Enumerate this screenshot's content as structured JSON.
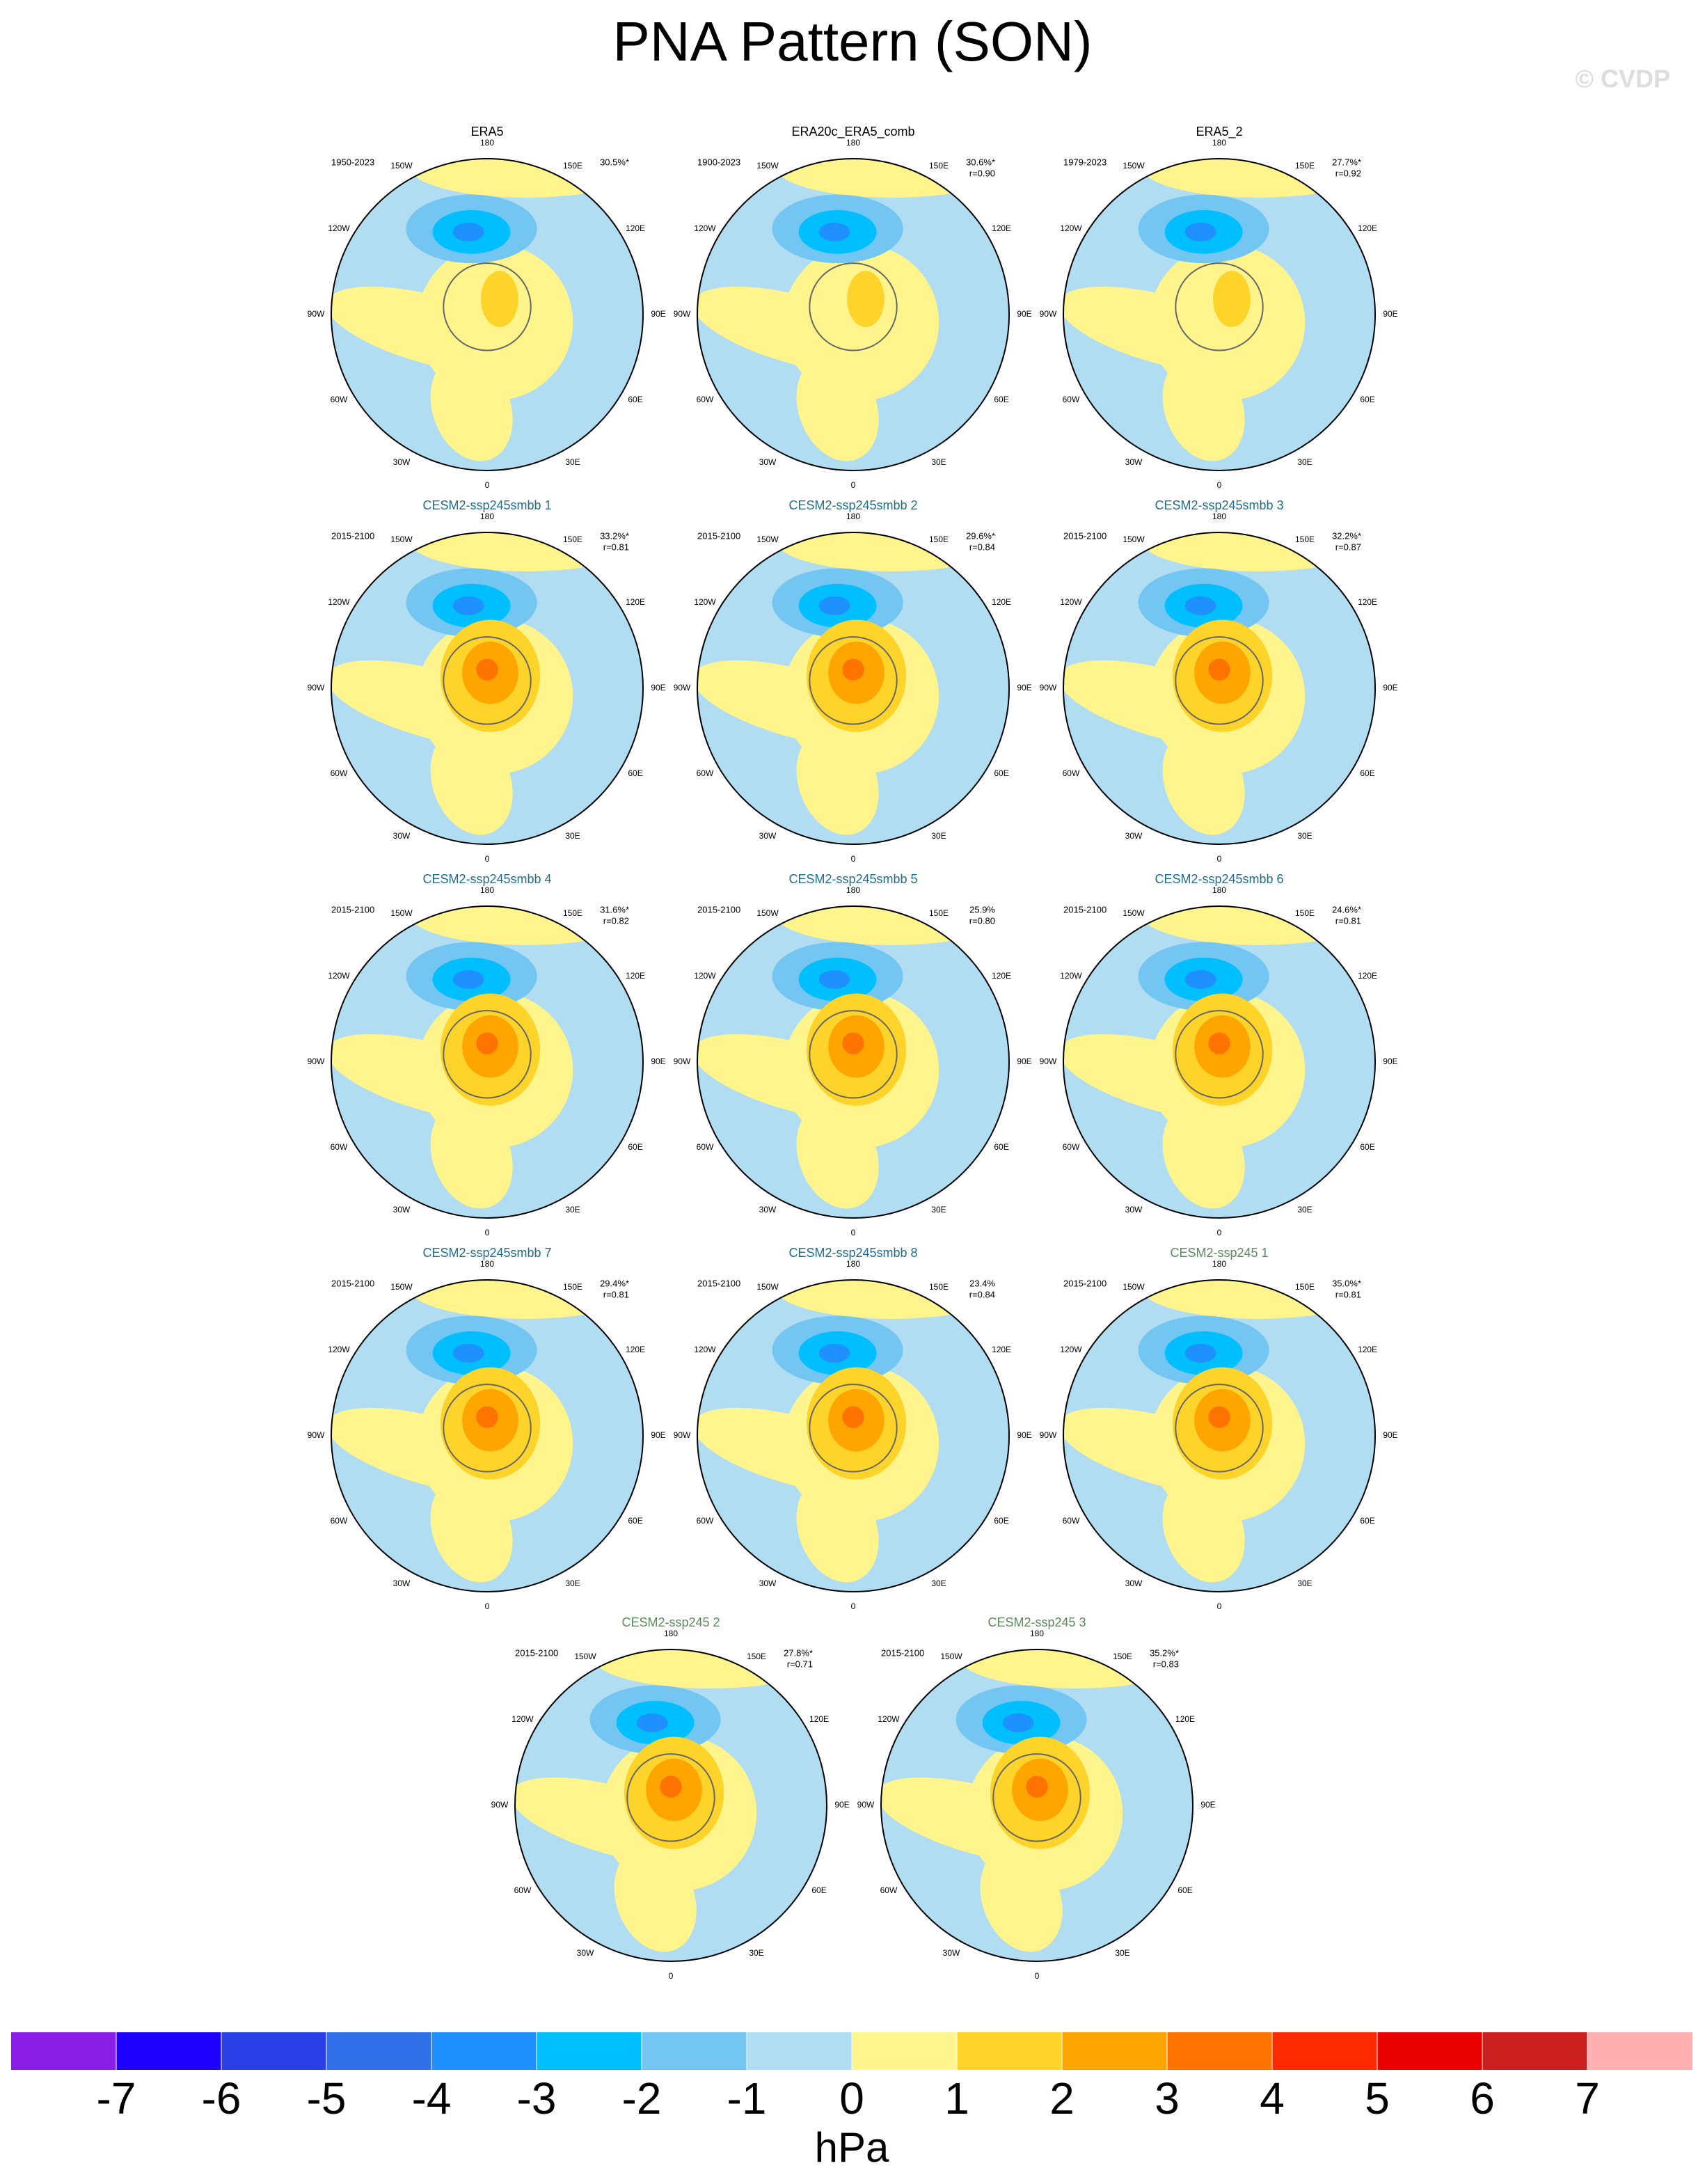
{
  "title": "PNA Pattern (SON)",
  "watermark": "© CVDP",
  "lon_labels": [
    "180",
    "150W",
    "150E",
    "120W",
    "120E",
    "90W",
    "90E",
    "60W",
    "60E",
    "30W",
    "30E",
    "0"
  ],
  "panels": [
    {
      "title": "ERA5",
      "title_color": "#000000",
      "period": "1950-2023",
      "pct": "30.5%*"
    },
    {
      "title": "ERA20c_ERA5_comb",
      "title_color": "#000000",
      "period": "1900-2023",
      "pct": "30.6%*",
      "r": "r=0.90"
    },
    {
      "title": "ERA5_2",
      "title_color": "#000000",
      "period": "1979-2023",
      "pct": "27.7%*",
      "r": "r=0.92"
    },
    {
      "title": "CESM2-ssp245smbb 1",
      "title_color": "#1f6e8c",
      "period": "2015-2100",
      "pct": "33.2%*",
      "r": "r=0.81"
    },
    {
      "title": "CESM2-ssp245smbb 2",
      "title_color": "#1f6e8c",
      "period": "2015-2100",
      "pct": "29.6%*",
      "r": "r=0.84"
    },
    {
      "title": "CESM2-ssp245smbb 3",
      "title_color": "#1f6e8c",
      "period": "2015-2100",
      "pct": "32.2%*",
      "r": "r=0.87"
    },
    {
      "title": "CESM2-ssp245smbb 4",
      "title_color": "#1f6e8c",
      "period": "2015-2100",
      "pct": "31.6%*",
      "r": "r=0.82"
    },
    {
      "title": "CESM2-ssp245smbb 5",
      "title_color": "#1f6e8c",
      "period": "2015-2100",
      "pct": "25.9%",
      "r": "r=0.80"
    },
    {
      "title": "CESM2-ssp245smbb 6",
      "title_color": "#1f6e8c",
      "period": "2015-2100",
      "pct": "24.6%*",
      "r": "r=0.81"
    },
    {
      "title": "CESM2-ssp245smbb 7",
      "title_color": "#1f6e8c",
      "period": "2015-2100",
      "pct": "29.4%*",
      "r": "r=0.81"
    },
    {
      "title": "CESM2-ssp245smbb 8",
      "title_color": "#1f6e8c",
      "period": "2015-2100",
      "pct": "23.4%",
      "r": "r=0.84"
    },
    {
      "title": "CESM2-ssp245 1",
      "title_color": "#5b8a5b",
      "period": "2015-2100",
      "pct": "35.0%*",
      "r": "r=0.81"
    },
    {
      "title": "CESM2-ssp245 2",
      "title_color": "#5b8a5b",
      "period": "2015-2100",
      "pct": "27.8%*",
      "r": "r=0.71"
    },
    {
      "title": "CESM2-ssp245 3",
      "title_color": "#5b8a5b",
      "period": "2015-2100",
      "pct": "35.2%*",
      "r": "r=0.83"
    }
  ],
  "colorbar": {
    "colors": [
      "#8b1ee6",
      "#1e00ff",
      "#2a3ee8",
      "#2f6fe8",
      "#1e90ff",
      "#00bfff",
      "#73c6f2",
      "#b1ddf2",
      "#fff58c",
      "#ffd42a",
      "#ffa500",
      "#ff7400",
      "#ff2a00",
      "#e60000",
      "#cc1f1f",
      "#ffb0b0"
    ],
    "ticks": [
      -7,
      -6,
      -5,
      -4,
      -3,
      -2,
      -1,
      0,
      1,
      2,
      3,
      4,
      5,
      6,
      7
    ],
    "label": "hPa"
  }
}
